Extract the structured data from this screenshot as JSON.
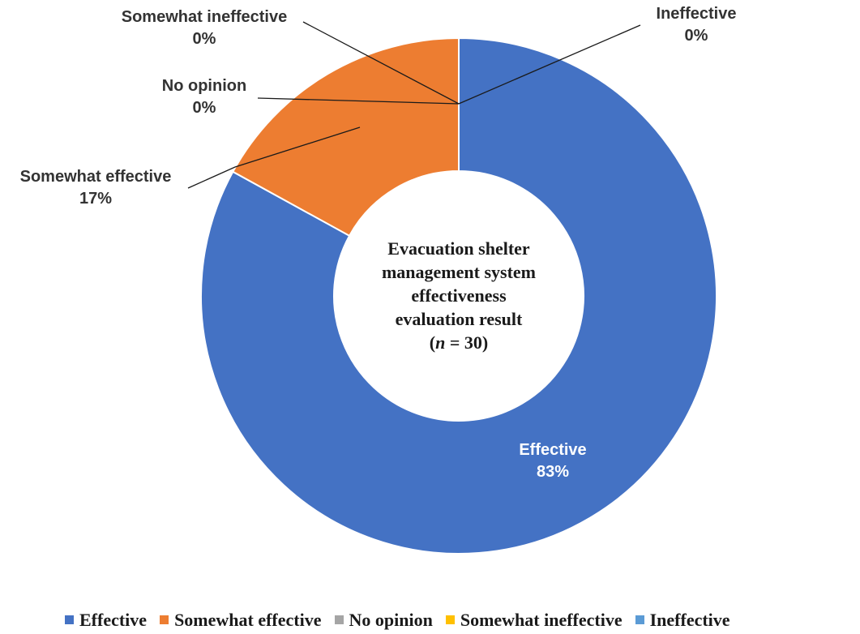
{
  "chart_data": {
    "type": "pie",
    "variant": "donut",
    "center_title_lines": [
      "Evacuation shelter",
      "management system",
      "effectiveness",
      "evaluation result"
    ],
    "center_n_symbol": "n",
    "center_n_value": "30",
    "slices": [
      {
        "name": "Effective",
        "value": 83,
        "value_label": "83%",
        "color": "#4472C4"
      },
      {
        "name": "Somewhat effective",
        "value": 17,
        "value_label": "17%",
        "color": "#ED7D31"
      },
      {
        "name": "No opinion",
        "value": 0,
        "value_label": "0%",
        "color": "#A5A5A5"
      },
      {
        "name": "Somewhat ineffective",
        "value": 0,
        "value_label": "0%",
        "color": "#FFC000"
      },
      {
        "name": "Ineffective",
        "value": 0,
        "value_label": "0%",
        "color": "#5B9BD5"
      }
    ],
    "legend_position": "bottom"
  }
}
